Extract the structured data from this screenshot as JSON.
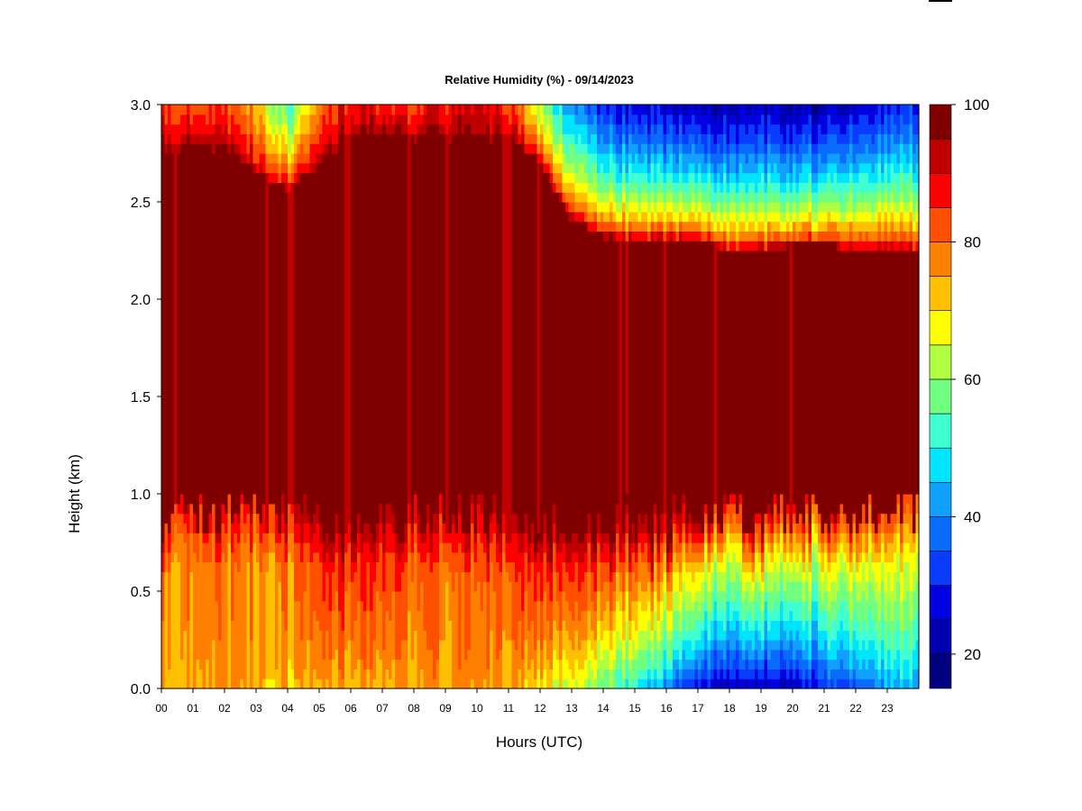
{
  "chart_data": {
    "type": "heatmap",
    "title": "Relative Humidity (%) - 09/14/2023",
    "xlabel": "Hours (UTC)",
    "ylabel": "Height (km)",
    "x_range": [
      0,
      24
    ],
    "ylim": [
      0,
      3
    ],
    "x_ticks": [
      "00",
      "01",
      "02",
      "03",
      "04",
      "05",
      "06",
      "07",
      "08",
      "09",
      "10",
      "11",
      "12",
      "13",
      "14",
      "15",
      "16",
      "17",
      "18",
      "19",
      "20",
      "21",
      "22",
      "23"
    ],
    "y_ticks": [
      "0.0",
      "0.5",
      "1.0",
      "1.5",
      "2.0",
      "2.5",
      "3.0"
    ],
    "colorbar": {
      "range": [
        15,
        100
      ],
      "step": 5,
      "ticks": [
        "20",
        "40",
        "60",
        "80",
        "100"
      ],
      "colors": [
        "#000080",
        "#0000b0",
        "#0000e0",
        "#0a3cff",
        "#0a6cff",
        "#10a0ff",
        "#00e4ff",
        "#40ffd0",
        "#70ff80",
        "#b0ff40",
        "#ffff00",
        "#ffc000",
        "#ff8000",
        "#ff5000",
        "#ff0000",
        "#c00000",
        "#800000"
      ]
    },
    "profiles": {
      "hours": [
        0,
        1,
        2,
        3,
        4,
        5,
        6,
        7,
        8,
        9,
        10,
        11,
        12,
        13,
        14,
        15,
        16,
        17,
        18,
        19,
        20,
        21,
        22,
        23,
        24
      ],
      "surface_rh": [
        74,
        76,
        75,
        74,
        72,
        73,
        74,
        73,
        74,
        75,
        75,
        74,
        70,
        63,
        55,
        48,
        38,
        25,
        22,
        20,
        23,
        28,
        33,
        40,
        42
      ],
      "lower_top_rh": [
        80,
        78,
        77,
        78,
        80,
        88,
        90,
        88,
        84,
        80,
        82,
        86,
        92,
        93,
        92,
        92,
        90,
        82,
        78,
        80,
        78,
        76,
        74,
        73,
        73
      ],
      "upper_base_km": [
        2.75,
        2.78,
        2.75,
        2.65,
        2.55,
        2.68,
        2.82,
        2.85,
        2.82,
        2.82,
        2.8,
        2.82,
        2.7,
        2.4,
        2.32,
        2.3,
        2.3,
        2.3,
        2.25,
        2.25,
        2.28,
        2.28,
        2.25,
        2.25,
        2.25
      ],
      "top_rh": [
        86,
        84,
        82,
        74,
        52,
        78,
        90,
        86,
        84,
        88,
        90,
        86,
        62,
        40,
        30,
        26,
        25,
        23,
        22,
        22,
        22,
        22,
        24,
        28,
        30
      ]
    }
  }
}
